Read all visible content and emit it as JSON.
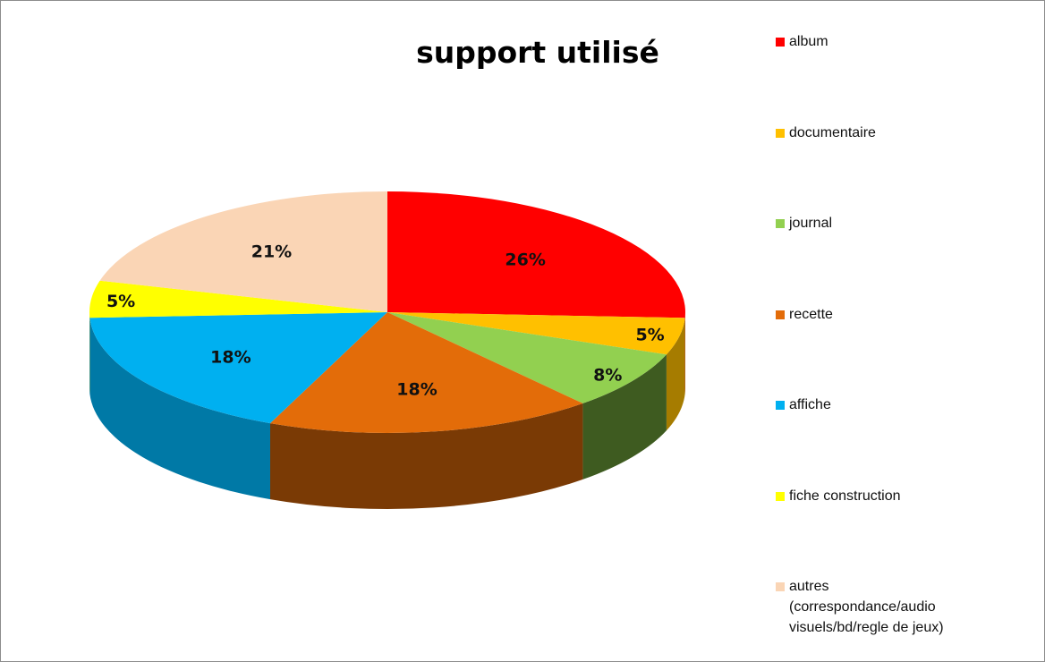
{
  "chart_data": {
    "type": "pie",
    "title": "support utilisé",
    "slices": [
      {
        "label": "album",
        "value": 26,
        "value_label": "26%",
        "color": "#ff0000",
        "side_color": "#a50000"
      },
      {
        "label": "documentaire",
        "value": 5,
        "value_label": "5%",
        "color": "#ffc000",
        "side_color": "#a67c00"
      },
      {
        "label": "journal",
        "value": 8,
        "value_label": "8%",
        "color": "#92d050",
        "side_color": "#3e5b20"
      },
      {
        "label": "recette",
        "value": 18,
        "value_label": "18%",
        "color": "#e36c09",
        "side_color": "#7a3a05"
      },
      {
        "label": "affiche",
        "value": 18,
        "value_label": "18%",
        "color": "#00b0f0",
        "side_color": "#0079a6"
      },
      {
        "label": "fiche construction",
        "value": 5,
        "value_label": "5%",
        "color": "#ffff00",
        "side_color": "#a6a600"
      },
      {
        "label": "autres\n(correspondance/audio\nvisuels/bd/regle de jeux)",
        "value": 21,
        "value_label": "21%",
        "color": "#fad5b5",
        "side_color": "#b0937a"
      }
    ],
    "legend_position": "right",
    "start_angle_deg": 0,
    "direction": "clockwise",
    "style": "3d"
  }
}
